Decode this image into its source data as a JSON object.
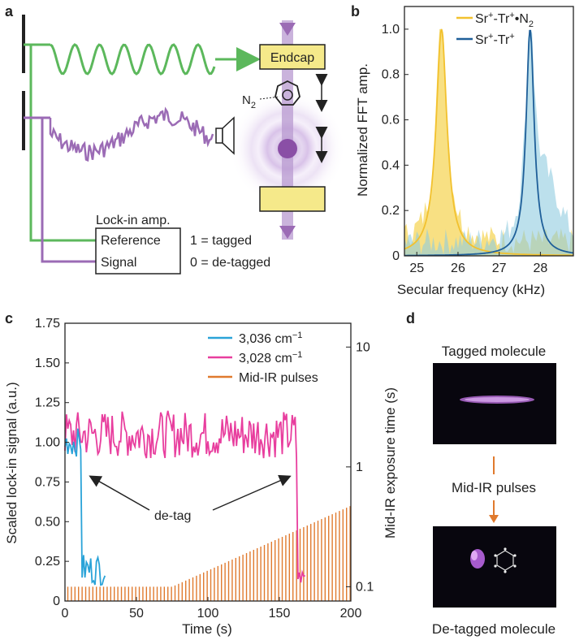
{
  "panels": {
    "a": "a",
    "b": "b",
    "c": "c",
    "d": "d"
  },
  "a": {
    "endcap": "Endcap",
    "n2_label": "N",
    "n2_sub": "2",
    "lockin_title": "Lock-in amp.",
    "reference": "Reference",
    "signal": "Signal",
    "tagged": "1 = tagged",
    "detagged": "0 = de-tagged",
    "colors": {
      "green": "#5cb85c",
      "purple": "#9b6bb5",
      "yellow": "#f5e98a"
    }
  },
  "b": {
    "legend": [
      {
        "pre": "Sr",
        "sup1": "+",
        "mid": "-Tr",
        "sup2": "+",
        "suffix": "•N",
        "sub": "2",
        "color": "#f2c12e"
      },
      {
        "pre": "Sr",
        "sup1": "+",
        "mid": "-Tr",
        "sup2": "+",
        "suffix": "",
        "sub": "",
        "color": "#1f5f99"
      }
    ],
    "chart_data": {
      "type": "area",
      "xlabel": "Secular frequency (kHz)",
      "ylabel": "Normalized FFT amp.",
      "xlim": [
        24.7,
        28.8
      ],
      "ylim": [
        0,
        1.1
      ],
      "xticks": [
        "25",
        "26",
        "27",
        "28"
      ],
      "yticks": [
        "0",
        "0.2",
        "0.4",
        "0.6",
        "0.8",
        "1.0"
      ],
      "series": [
        {
          "name": "Sr+-Tr+•N2",
          "center": 25.6,
          "width": 0.16,
          "peak": 1.0,
          "color": "#f2c12e"
        },
        {
          "name": "Sr+-Tr+",
          "center": 27.75,
          "width": 0.12,
          "peak": 1.0,
          "color": "#1f5f99"
        }
      ]
    }
  },
  "c": {
    "legend": [
      "3,036 cm",
      "3,028 cm",
      "Mid-IR pulses"
    ],
    "legend_sup": "−1",
    "detag": "de-tag",
    "chart_data": {
      "type": "line",
      "xlabel": "Time (s)",
      "ylabel": "Scaled lock-in signal (a.u.)",
      "ylabel_right": "Mid-IR exposure time (s)",
      "xlim": [
        0,
        200
      ],
      "ylim": [
        0,
        1.75
      ],
      "xticks": [
        "0",
        "50",
        "100",
        "150",
        "200"
      ],
      "yticks": [
        "0",
        "0.25",
        "0.50",
        "0.75",
        "1.00",
        "1.25",
        "1.50",
        "1.75"
      ],
      "yticks_right": [
        "0.1",
        "1",
        "10"
      ],
      "series": [
        {
          "name": "3,036 cm-1",
          "color": "#2aa3d8",
          "x_end": 28,
          "drop_at": 12,
          "level_before": 1.0,
          "level_after": 0.2
        },
        {
          "name": "3,028 cm-1",
          "color": "#e83e9e",
          "x_end": 168,
          "drop_at": 162,
          "level_before": 1.05,
          "level_after": 0.1
        },
        {
          "name": "Mid-IR pulses",
          "color": "#e07a2e",
          "x_end": 200,
          "flat_until": 75,
          "y_start": 0.09,
          "y_end": 0.6
        }
      ]
    }
  },
  "d": {
    "tagged": "Tagged molecule",
    "pulses": "Mid-IR pulses",
    "detagged": "De-tagged molecule",
    "arrow_color": "#e07a2e"
  }
}
